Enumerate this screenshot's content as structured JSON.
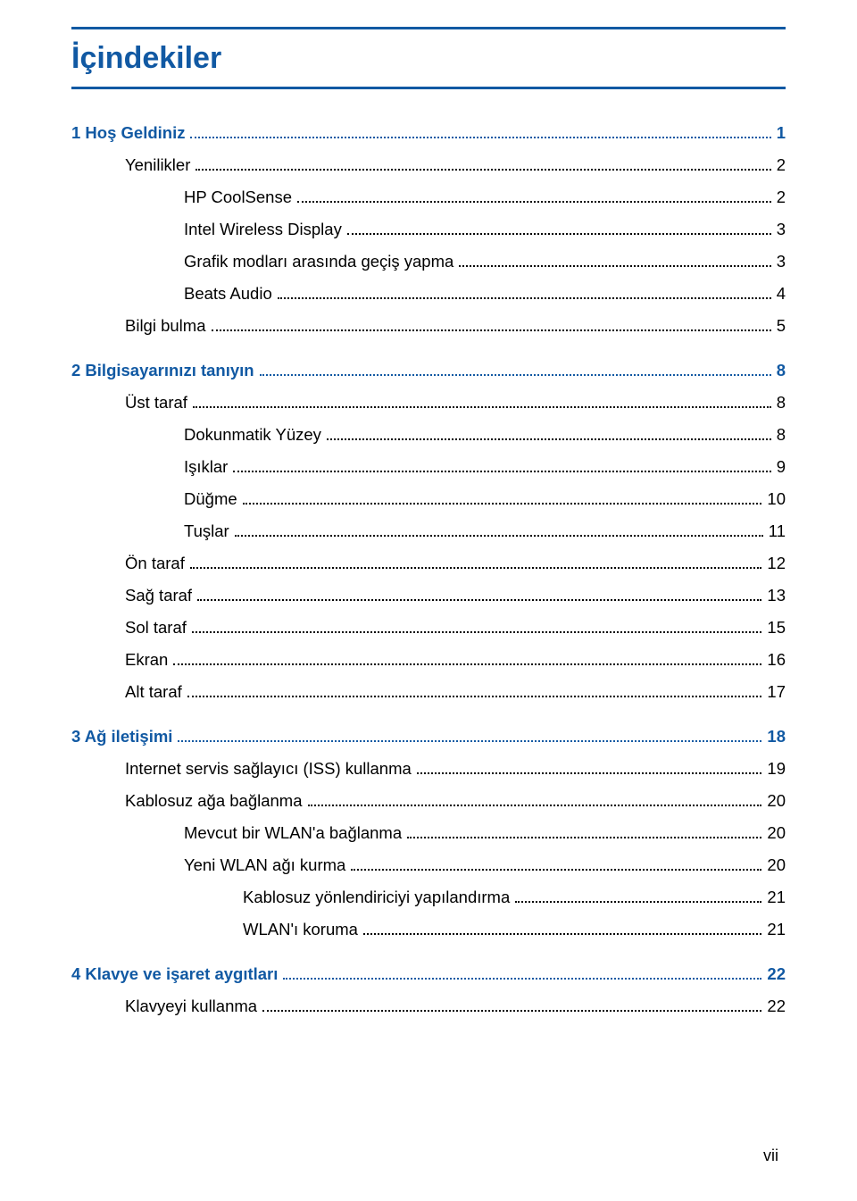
{
  "colors": {
    "accent": "#1159a3",
    "text": "#000000",
    "bg": "#ffffff"
  },
  "title": "İçindekiler",
  "footer_page": "vii",
  "toc": [
    {
      "kind": "chapter",
      "label": "1  Hoş Geldiniz",
      "page": "1",
      "indent": 0,
      "gap": false
    },
    {
      "kind": "item",
      "label": "Yenilikler",
      "page": "2",
      "indent": 1,
      "gap": false
    },
    {
      "kind": "item",
      "label": "HP CoolSense",
      "page": "2",
      "indent": 2,
      "gap": false
    },
    {
      "kind": "item",
      "label": "Intel Wireless Display",
      "page": "3",
      "indent": 2,
      "gap": false
    },
    {
      "kind": "item",
      "label": "Grafik modları arasında geçiş yapma",
      "page": "3",
      "indent": 2,
      "gap": false
    },
    {
      "kind": "item",
      "label": "Beats Audio",
      "page": "4",
      "indent": 2,
      "gap": false
    },
    {
      "kind": "item",
      "label": "Bilgi bulma",
      "page": "5",
      "indent": 1,
      "gap": false
    },
    {
      "kind": "chapter",
      "label": "2  Bilgisayarınızı tanıyın",
      "page": "8",
      "indent": 0,
      "gap": true
    },
    {
      "kind": "item",
      "label": "Üst taraf",
      "page": "8",
      "indent": 1,
      "gap": false
    },
    {
      "kind": "item",
      "label": "Dokunmatik Yüzey",
      "page": "8",
      "indent": 2,
      "gap": false
    },
    {
      "kind": "item",
      "label": "Işıklar",
      "page": "9",
      "indent": 2,
      "gap": false
    },
    {
      "kind": "item",
      "label": "Düğme",
      "page": "10",
      "indent": 2,
      "gap": false
    },
    {
      "kind": "item",
      "label": "Tuşlar",
      "page": "11",
      "indent": 2,
      "gap": false
    },
    {
      "kind": "item",
      "label": "Ön taraf",
      "page": "12",
      "indent": 1,
      "gap": false
    },
    {
      "kind": "item",
      "label": "Sağ taraf",
      "page": "13",
      "indent": 1,
      "gap": false
    },
    {
      "kind": "item",
      "label": "Sol taraf",
      "page": "15",
      "indent": 1,
      "gap": false
    },
    {
      "kind": "item",
      "label": "Ekran",
      "page": "16",
      "indent": 1,
      "gap": false
    },
    {
      "kind": "item",
      "label": "Alt taraf",
      "page": "17",
      "indent": 1,
      "gap": false
    },
    {
      "kind": "chapter",
      "label": "3  Ağ iletişimi",
      "page": "18",
      "indent": 0,
      "gap": true
    },
    {
      "kind": "item",
      "label": "Internet servis sağlayıcı (ISS) kullanma",
      "page": "19",
      "indent": 1,
      "gap": false
    },
    {
      "kind": "item",
      "label": "Kablosuz ağa bağlanma",
      "page": "20",
      "indent": 1,
      "gap": false
    },
    {
      "kind": "item",
      "label": "Mevcut bir WLAN'a bağlanma",
      "page": "20",
      "indent": 2,
      "gap": false
    },
    {
      "kind": "item",
      "label": "Yeni WLAN ağı kurma",
      "page": "20",
      "indent": 2,
      "gap": false
    },
    {
      "kind": "item",
      "label": "Kablosuz yönlendiriciyi yapılandırma",
      "page": "21",
      "indent": 3,
      "gap": false
    },
    {
      "kind": "item",
      "label": "WLAN'ı koruma",
      "page": "21",
      "indent": 3,
      "gap": false
    },
    {
      "kind": "chapter",
      "label": "4  Klavye ve işaret aygıtları",
      "page": "22",
      "indent": 0,
      "gap": true
    },
    {
      "kind": "item",
      "label": "Klavyeyi kullanma",
      "page": "22",
      "indent": 1,
      "gap": false
    }
  ]
}
